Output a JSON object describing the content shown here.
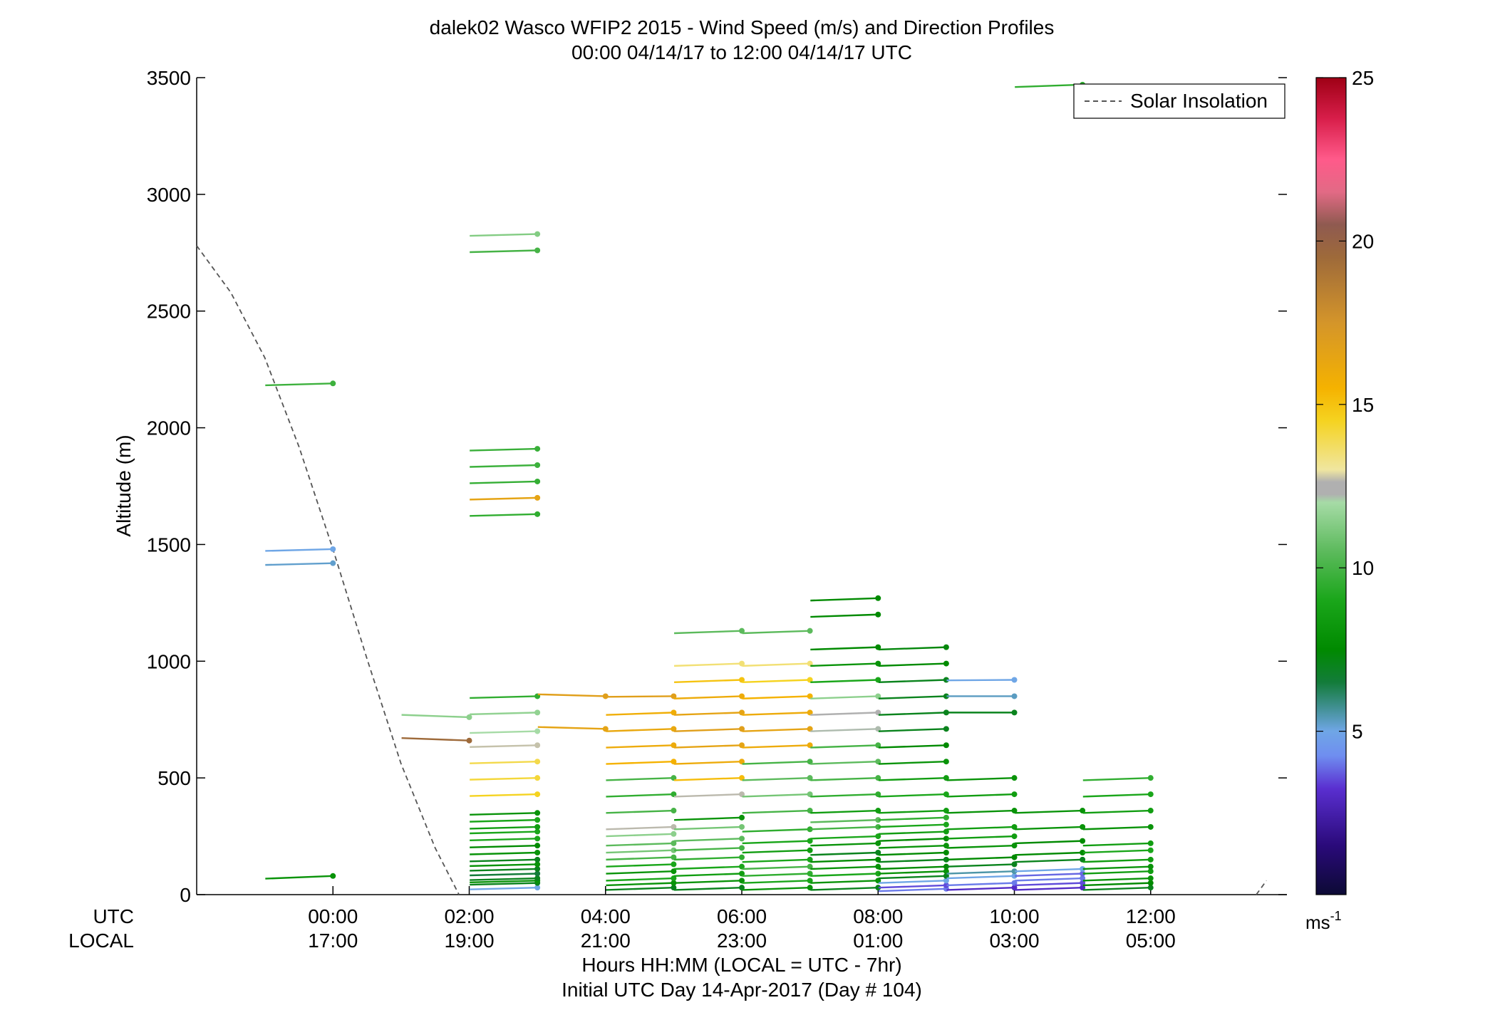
{
  "title": {
    "line1": "dalek02 Wasco WFIP2 2015 - Wind Speed (m/s) and Direction Profiles",
    "line2": "00:00 04/14/17 to 12:00 04/14/17  UTC"
  },
  "axes": {
    "ylabel": "Altitude (m)",
    "xlabel1": "Hours HH:MM  (LOCAL = UTC - 7hr)",
    "xlabel2": "Initial UTC Day 14-Apr-2017 (Day # 104)",
    "utc_label": "UTC",
    "local_label": "LOCAL"
  },
  "legend": {
    "solar": "Solar Insolation",
    "placement": "top-right"
  },
  "colorbar": {
    "min": 0,
    "max": 25,
    "ticks": [
      "5",
      "10",
      "15",
      "20",
      "25"
    ],
    "unit_base": "ms",
    "unit_exp": "-1"
  },
  "chart_data": {
    "type": "scatter",
    "subtype": "wind-barb profiles (stick points at data location, tail shows direction, colored by speed)",
    "xlim_hours": [
      -2.0,
      14.0
    ],
    "ylim": [
      0,
      3500
    ],
    "y_ticks": [
      "0",
      "500",
      "1000",
      "1500",
      "2000",
      "2500",
      "3000",
      "3500"
    ],
    "x_ticks_utc": [
      "00:00",
      "02:00",
      "04:00",
      "06:00",
      "08:00",
      "10:00",
      "12:00"
    ],
    "x_ticks_local": [
      "17:00",
      "19:00",
      "21:00",
      "23:00",
      "01:00",
      "03:00",
      "05:00"
    ],
    "x_tick_hours": [
      0,
      2,
      4,
      6,
      8,
      10,
      12
    ],
    "solar_insolation_curve": [
      [
        -2.0,
        2780
      ],
      [
        -1.5,
        2580
      ],
      [
        -1.0,
        2300
      ],
      [
        -0.5,
        1920
      ],
      [
        0.0,
        1480
      ],
      [
        0.5,
        1010
      ],
      [
        1.0,
        560
      ],
      [
        1.5,
        200
      ],
      [
        1.85,
        0
      ]
    ],
    "solar_tail": [
      [
        13.55,
        0
      ],
      [
        13.7,
        60
      ]
    ],
    "profiles": [
      {
        "time": 0.0,
        "points": [
          [
            80,
            8,
            2.3
          ],
          [
            1420,
            5.2,
            1.5
          ],
          [
            1480,
            5.0,
            1.5
          ],
          [
            2190,
            9.8,
            1.6
          ]
        ]
      },
      {
        "time": 2.0,
        "points": [
          [
            660,
            19.5,
            -2.1
          ],
          [
            760,
            11.5,
            -2.0
          ]
        ]
      },
      {
        "time": 3.0,
        "points": [
          [
            30,
            5,
            1.5
          ],
          [
            50,
            7,
            1.5
          ],
          [
            60,
            8,
            1.5
          ],
          [
            70,
            7,
            1.5
          ],
          [
            90,
            6.5,
            1.5
          ],
          [
            110,
            7,
            1.5
          ],
          [
            130,
            8,
            1.5
          ],
          [
            150,
            7,
            1.5
          ],
          [
            180,
            8,
            1.5
          ],
          [
            210,
            7.5,
            1.5
          ],
          [
            240,
            9,
            1.5
          ],
          [
            270,
            9,
            1.5
          ],
          [
            290,
            8.5,
            1.5
          ],
          [
            320,
            9,
            1.5
          ],
          [
            350,
            8,
            1.5
          ],
          [
            430,
            14.5,
            1.5
          ],
          [
            500,
            14.2,
            1.5
          ],
          [
            570,
            14.0,
            1.5
          ],
          [
            640,
            12.6,
            1.5
          ],
          [
            700,
            12.0,
            1.5
          ],
          [
            780,
            11.6,
            1.5
          ],
          [
            850,
            9.5,
            1.5
          ],
          [
            1630,
            9.5,
            1.5
          ],
          [
            1700,
            16.5,
            1.5
          ],
          [
            1770,
            9.6,
            1.5
          ],
          [
            1840,
            9.8,
            1.5
          ],
          [
            1910,
            9.7,
            1.5
          ],
          [
            2760,
            10,
            1.5
          ],
          [
            2830,
            11.3,
            1.5
          ]
        ]
      },
      {
        "time": 4.0,
        "points": [
          [
            710,
            16.5,
            -1.6
          ],
          [
            850,
            16.8,
            -1.6
          ]
        ]
      },
      {
        "time": 5.0,
        "points": [
          [
            30,
            7,
            2.0
          ],
          [
            50,
            8,
            2.0
          ],
          [
            70,
            9,
            2.0
          ],
          [
            100,
            8,
            2.0
          ],
          [
            130,
            9,
            2.0
          ],
          [
            160,
            10,
            2.0
          ],
          [
            190,
            11,
            2.0
          ],
          [
            220,
            10.5,
            2.0
          ],
          [
            260,
            11.5,
            2.0
          ],
          [
            290,
            12.5,
            2.0
          ],
          [
            360,
            10,
            2.0
          ],
          [
            430,
            9.5,
            2.0
          ],
          [
            500,
            10,
            2.0
          ],
          [
            570,
            15.5,
            2.0
          ],
          [
            640,
            16,
            2.0
          ],
          [
            710,
            16.2,
            2.0
          ],
          [
            780,
            15.8,
            2.0
          ],
          [
            850,
            16.8,
            0.5
          ]
        ]
      },
      {
        "time": 6.0,
        "points": [
          [
            30,
            7,
            2.0
          ],
          [
            60,
            8,
            2.0
          ],
          [
            90,
            8.5,
            2.0
          ],
          [
            120,
            9,
            2.0
          ],
          [
            160,
            9.5,
            2.0
          ],
          [
            200,
            10,
            2.0
          ],
          [
            240,
            10.5,
            2.0
          ],
          [
            290,
            11,
            2.0
          ],
          [
            330,
            8,
            2.0
          ],
          [
            430,
            12.5,
            2.0
          ],
          [
            500,
            15.2,
            2.0
          ],
          [
            570,
            16,
            2.0
          ],
          [
            640,
            16.5,
            2.0
          ],
          [
            710,
            16.8,
            2.0
          ],
          [
            780,
            16.5,
            2.0
          ],
          [
            850,
            16,
            2.0
          ],
          [
            920,
            15,
            2.0
          ],
          [
            990,
            13.5,
            2.0
          ],
          [
            1130,
            10.5,
            2.0
          ]
        ]
      },
      {
        "time": 7.0,
        "points": [
          [
            30,
            8,
            2.0
          ],
          [
            60,
            9,
            2.0
          ],
          [
            90,
            9.5,
            2.0
          ],
          [
            120,
            10,
            2.0
          ],
          [
            150,
            9,
            2.0
          ],
          [
            190,
            8.5,
            2.0
          ],
          [
            230,
            9,
            2.0
          ],
          [
            280,
            9.5,
            2.0
          ],
          [
            360,
            10,
            2.0
          ],
          [
            430,
            11,
            2.0
          ],
          [
            500,
            10.5,
            2.0
          ],
          [
            570,
            10,
            2.0
          ],
          [
            640,
            16,
            2.0
          ],
          [
            710,
            16.5,
            2.0
          ],
          [
            780,
            16,
            2.0
          ],
          [
            850,
            15.5,
            2.0
          ],
          [
            920,
            14.5,
            2.0
          ],
          [
            990,
            13.5,
            2.0
          ],
          [
            1130,
            10.5,
            2.0
          ]
        ]
      },
      {
        "time": 8.0,
        "points": [
          [
            30,
            7,
            2.0
          ],
          [
            60,
            8,
            2.0
          ],
          [
            90,
            9,
            2.0
          ],
          [
            120,
            8,
            2.0
          ],
          [
            150,
            7.5,
            2.0
          ],
          [
            180,
            7,
            2.0
          ],
          [
            220,
            8,
            2.0
          ],
          [
            250,
            9,
            2.0
          ],
          [
            290,
            10,
            2.0
          ],
          [
            320,
            10.5,
            2.0
          ],
          [
            360,
            8.5,
            2.0
          ],
          [
            430,
            9.5,
            2.0
          ],
          [
            500,
            10,
            2.0
          ],
          [
            570,
            10.5,
            2.0
          ],
          [
            640,
            10,
            2.0
          ],
          [
            710,
            12.3,
            2.0
          ],
          [
            780,
            12.4,
            2.0
          ],
          [
            850,
            11.5,
            2.0
          ],
          [
            920,
            9,
            2.0
          ],
          [
            990,
            8,
            2.0
          ],
          [
            1060,
            7.5,
            2.0
          ],
          [
            1200,
            7.5,
            2.0
          ],
          [
            1270,
            7.5,
            2.0
          ]
        ]
      },
      {
        "time": 9.0,
        "points": [
          [
            25,
            4,
            2.0
          ],
          [
            40,
            3.5,
            2.0
          ],
          [
            60,
            5,
            2.0
          ],
          [
            80,
            7,
            2.0
          ],
          [
            100,
            8,
            2.0
          ],
          [
            120,
            7.5,
            2.0
          ],
          [
            150,
            7,
            2.0
          ],
          [
            180,
            7.5,
            2.0
          ],
          [
            210,
            8,
            2.0
          ],
          [
            240,
            7.5,
            2.0
          ],
          [
            270,
            8.5,
            2.0
          ],
          [
            300,
            9,
            2.0
          ],
          [
            330,
            9.5,
            2.0
          ],
          [
            360,
            8.5,
            2.0
          ],
          [
            430,
            9,
            2.0
          ],
          [
            500,
            8.5,
            2.0
          ],
          [
            570,
            8,
            2.0
          ],
          [
            640,
            7.5,
            2.0
          ],
          [
            710,
            7,
            2.0
          ],
          [
            780,
            7,
            2.0
          ],
          [
            850,
            7,
            2.0
          ],
          [
            920,
            7,
            2.0
          ],
          [
            990,
            7.5,
            2.0
          ],
          [
            1060,
            7.3,
            2.0
          ]
        ]
      },
      {
        "time": 10.0,
        "points": [
          [
            30,
            3,
            2.0
          ],
          [
            50,
            4,
            2.0
          ],
          [
            80,
            5,
            2.0
          ],
          [
            100,
            5.5,
            2.0
          ],
          [
            130,
            7,
            2.0
          ],
          [
            160,
            7.5,
            2.0
          ],
          [
            210,
            8,
            2.0
          ],
          [
            250,
            8.5,
            2.0
          ],
          [
            290,
            8.5,
            2.0
          ],
          [
            360,
            8,
            2.0
          ],
          [
            430,
            8.5,
            2.0
          ],
          [
            500,
            8,
            2.0
          ],
          [
            780,
            7,
            0.0
          ],
          [
            850,
            5.3,
            0.0
          ],
          [
            920,
            5.0,
            0.4
          ]
        ]
      },
      {
        "time": 11.0,
        "points": [
          [
            30,
            3,
            2.0
          ],
          [
            50,
            3.5,
            2.0
          ],
          [
            70,
            4,
            2.0
          ],
          [
            90,
            3.8,
            2.0
          ],
          [
            110,
            5,
            2.0
          ],
          [
            150,
            7,
            2.0
          ],
          [
            180,
            7.5,
            2.0
          ],
          [
            230,
            7.5,
            2.0
          ],
          [
            290,
            8,
            2.0
          ],
          [
            360,
            8,
            2.0
          ],
          [
            3470,
            9.5,
            2.0
          ]
        ]
      },
      {
        "time": 12.0,
        "points": [
          [
            30,
            7,
            2.0
          ],
          [
            50,
            7.5,
            2.0
          ],
          [
            70,
            8,
            2.0
          ],
          [
            100,
            8.5,
            2.0
          ],
          [
            120,
            8,
            2.0
          ],
          [
            150,
            8.5,
            2.0
          ],
          [
            190,
            9,
            2.0
          ],
          [
            220,
            8.5,
            2.0
          ],
          [
            290,
            8,
            2.0
          ],
          [
            360,
            8.5,
            2.0
          ],
          [
            430,
            9,
            2.0
          ],
          [
            500,
            9.5,
            2.0
          ]
        ]
      }
    ]
  }
}
